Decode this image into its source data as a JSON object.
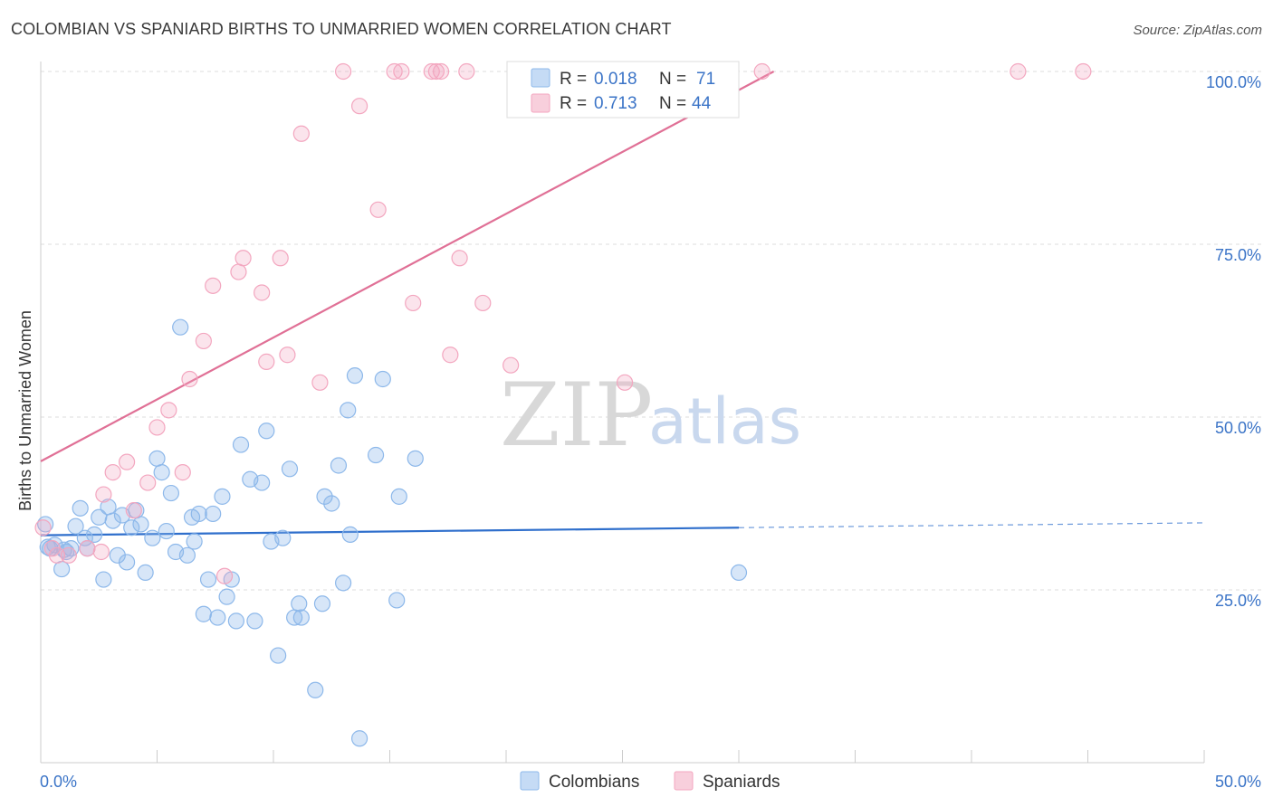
{
  "title": "COLOMBIAN VS SPANIARD BIRTHS TO UNMARRIED WOMEN CORRELATION CHART",
  "source": "Source: ZipAtlas.com",
  "watermark": {
    "zip": "ZIP",
    "atlas": "atlas"
  },
  "legend": {
    "r_label": "R =",
    "n_label": "N =",
    "rows": [
      {
        "r": "0.018",
        "n": "71",
        "color": "#8db8ea"
      },
      {
        "r": "0.713",
        "n": "44",
        "color": "#f3a6bf"
      }
    ]
  },
  "bottom_legend": [
    "Colombians",
    "Spaniards"
  ],
  "chart_data": {
    "type": "scatter",
    "title": "COLOMBIAN VS SPANIARD BIRTHS TO UNMARRIED WOMEN CORRELATION CHART",
    "xlabel": "",
    "ylabel": "Births to Unmarried Women",
    "xlim": [
      0,
      50
    ],
    "ylim": [
      0,
      100
    ],
    "x_tick_labels": [
      "0.0%",
      "50.0%"
    ],
    "y_ticks": [
      25,
      50,
      75,
      100
    ],
    "y_tick_labels": [
      "25.0%",
      "50.0%",
      "75.0%",
      "100.0%"
    ],
    "grid": "horizontal dashed",
    "legend_position": "top-center",
    "series": [
      {
        "name": "Colombians",
        "color": "#8db8ea",
        "line_color": "#2f6fcc",
        "trend": {
          "x": [
            0,
            30,
            50
          ],
          "y": [
            32.9,
            34.0,
            34.7
          ],
          "dashed_from_x": 30
        },
        "points": [
          [
            0.2,
            34.5
          ],
          [
            0.4,
            31.0
          ],
          [
            0.6,
            31.5
          ],
          [
            0.9,
            28.0
          ],
          [
            1.1,
            30.5
          ],
          [
            1.3,
            31.0
          ],
          [
            1.5,
            34.2
          ],
          [
            1.7,
            36.8
          ],
          [
            1.9,
            32.5
          ],
          [
            2.0,
            31.0
          ],
          [
            2.3,
            33.0
          ],
          [
            2.5,
            35.5
          ],
          [
            2.7,
            26.5
          ],
          [
            2.9,
            37.0
          ],
          [
            3.1,
            35.0
          ],
          [
            3.3,
            30.0
          ],
          [
            3.5,
            35.8
          ],
          [
            3.7,
            29.0
          ],
          [
            3.9,
            34.0
          ],
          [
            4.1,
            36.5
          ],
          [
            4.3,
            34.5
          ],
          [
            4.5,
            27.5
          ],
          [
            4.8,
            32.5
          ],
          [
            5.0,
            44.0
          ],
          [
            5.2,
            42.0
          ],
          [
            5.4,
            33.5
          ],
          [
            5.6,
            39.0
          ],
          [
            5.8,
            30.5
          ],
          [
            6.0,
            63.0
          ],
          [
            6.3,
            30.0
          ],
          [
            6.5,
            35.5
          ],
          [
            6.6,
            32.0
          ],
          [
            6.8,
            36.0
          ],
          [
            7.0,
            21.5
          ],
          [
            7.2,
            26.5
          ],
          [
            7.4,
            36.0
          ],
          [
            7.6,
            21.0
          ],
          [
            7.8,
            38.5
          ],
          [
            8.0,
            24.0
          ],
          [
            8.2,
            26.5
          ],
          [
            8.4,
            20.5
          ],
          [
            8.6,
            46.0
          ],
          [
            9.0,
            41.0
          ],
          [
            9.2,
            20.5
          ],
          [
            9.5,
            40.5
          ],
          [
            9.7,
            48.0
          ],
          [
            9.9,
            32.0
          ],
          [
            10.2,
            15.5
          ],
          [
            10.4,
            32.5
          ],
          [
            10.7,
            42.5
          ],
          [
            10.9,
            21.0
          ],
          [
            11.1,
            23.0
          ],
          [
            11.2,
            21.0
          ],
          [
            11.8,
            10.5
          ],
          [
            12.1,
            23.0
          ],
          [
            12.2,
            38.5
          ],
          [
            12.5,
            37.5
          ],
          [
            12.8,
            43.0
          ],
          [
            13.0,
            26.0
          ],
          [
            13.2,
            51.0
          ],
          [
            13.3,
            33.0
          ],
          [
            13.5,
            56.0
          ],
          [
            13.7,
            3.5
          ],
          [
            14.4,
            44.5
          ],
          [
            14.7,
            55.5
          ],
          [
            15.4,
            38.5
          ],
          [
            15.3,
            23.5
          ],
          [
            16.1,
            44.0
          ],
          [
            30.0,
            27.5
          ],
          [
            0.3,
            31.2
          ],
          [
            1.0,
            30.8
          ]
        ]
      },
      {
        "name": "Spaniards",
        "color": "#f3a6bf",
        "line_color": "#e07096",
        "trend": {
          "x": [
            0,
            31.5
          ],
          "y": [
            43.6,
            100
          ]
        },
        "points": [
          [
            0.1,
            34.0
          ],
          [
            0.5,
            31.0
          ],
          [
            0.7,
            30.0
          ],
          [
            1.2,
            30.0
          ],
          [
            2.0,
            31.0
          ],
          [
            2.6,
            30.5
          ],
          [
            2.7,
            38.8
          ],
          [
            3.1,
            42.0
          ],
          [
            3.7,
            43.5
          ],
          [
            4.0,
            36.5
          ],
          [
            4.6,
            40.5
          ],
          [
            5.0,
            48.5
          ],
          [
            5.5,
            51.0
          ],
          [
            6.1,
            42.0
          ],
          [
            6.4,
            55.5
          ],
          [
            7.0,
            61.0
          ],
          [
            7.4,
            69.0
          ],
          [
            7.9,
            27.0
          ],
          [
            8.5,
            71.0
          ],
          [
            8.7,
            73.0
          ],
          [
            9.5,
            68.0
          ],
          [
            9.7,
            58.0
          ],
          [
            10.3,
            73.0
          ],
          [
            10.6,
            59.0
          ],
          [
            11.2,
            91.0
          ],
          [
            12.0,
            55.0
          ],
          [
            13.0,
            100.0
          ],
          [
            13.7,
            95.0
          ],
          [
            14.5,
            80.0
          ],
          [
            15.2,
            100.0
          ],
          [
            15.5,
            100.0
          ],
          [
            16.0,
            66.5
          ],
          [
            16.8,
            100.0
          ],
          [
            17.2,
            100.0
          ],
          [
            17.6,
            59.0
          ],
          [
            18.0,
            73.0
          ],
          [
            18.3,
            100.0
          ],
          [
            19.0,
            66.5
          ],
          [
            20.2,
            57.5
          ],
          [
            25.1,
            55.0
          ],
          [
            31.0,
            100.0
          ],
          [
            42.0,
            100.0
          ],
          [
            44.8,
            100.0
          ],
          [
            17.0,
            100.0
          ]
        ]
      }
    ]
  }
}
